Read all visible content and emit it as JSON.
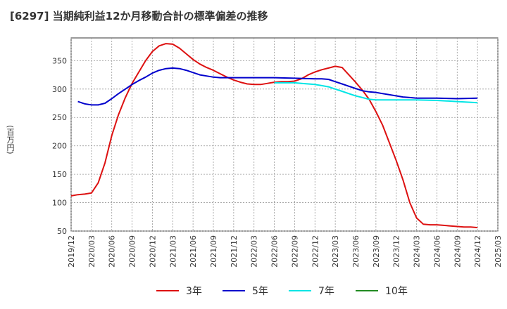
{
  "chart_data": {
    "type": "line",
    "title": "[6297]  当期純利益12か月移動合計の標準偏差の推移",
    "xlabel": "",
    "ylabel": "(百万円)",
    "ylim": [
      50,
      390
    ],
    "yticks": [
      50,
      100,
      150,
      200,
      250,
      300,
      350
    ],
    "xticks": [
      "2019/12",
      "2020/03",
      "2020/06",
      "2020/09",
      "2020/12",
      "2021/03",
      "2021/06",
      "2021/09",
      "2021/12",
      "2022/03",
      "2022/06",
      "2022/09",
      "2022/12",
      "2023/03",
      "2023/06",
      "2023/09",
      "2023/12",
      "2024/03",
      "2024/06",
      "2024/09",
      "2024/12",
      "2025/03"
    ],
    "grid": true,
    "legend_position": "bottom",
    "series": [
      {
        "name": "3年",
        "color": "#dd1111",
        "points": [
          [
            "2019/12",
            112
          ],
          [
            "2020/01",
            114
          ],
          [
            "2020/02",
            115
          ],
          [
            "2020/03",
            117
          ],
          [
            "2020/04",
            135
          ],
          [
            "2020/05",
            170
          ],
          [
            "2020/06",
            218
          ],
          [
            "2020/07",
            255
          ],
          [
            "2020/08",
            285
          ],
          [
            "2020/09",
            310
          ],
          [
            "2020/10",
            330
          ],
          [
            "2020/11",
            350
          ],
          [
            "2020/12",
            366
          ],
          [
            "2021/01",
            376
          ],
          [
            "2021/02",
            380
          ],
          [
            "2021/03",
            379
          ],
          [
            "2021/04",
            372
          ],
          [
            "2021/05",
            362
          ],
          [
            "2021/06",
            352
          ],
          [
            "2021/07",
            344
          ],
          [
            "2021/08",
            338
          ],
          [
            "2021/09",
            333
          ],
          [
            "2021/10",
            327
          ],
          [
            "2021/11",
            321
          ],
          [
            "2021/12",
            316
          ],
          [
            "2022/01",
            312
          ],
          [
            "2022/02",
            309
          ],
          [
            "2022/03",
            308
          ],
          [
            "2022/04",
            308
          ],
          [
            "2022/05",
            310
          ],
          [
            "2022/06",
            312
          ],
          [
            "2022/07",
            313
          ],
          [
            "2022/08",
            313
          ],
          [
            "2022/09",
            314
          ],
          [
            "2022/10",
            318
          ],
          [
            "2022/11",
            325
          ],
          [
            "2022/12",
            330
          ],
          [
            "2023/01",
            334
          ],
          [
            "2023/02",
            337
          ],
          [
            "2023/03",
            340
          ],
          [
            "2023/04",
            338
          ],
          [
            "2023/05",
            325
          ],
          [
            "2023/06",
            312
          ],
          [
            "2023/07",
            298
          ],
          [
            "2023/08",
            282
          ],
          [
            "2023/09",
            260
          ],
          [
            "2023/10",
            236
          ],
          [
            "2023/11",
            205
          ],
          [
            "2023/12",
            174
          ],
          [
            "2024/01",
            140
          ],
          [
            "2024/02",
            100
          ],
          [
            "2024/03",
            73
          ],
          [
            "2024/04",
            62
          ],
          [
            "2024/05",
            61
          ],
          [
            "2024/06",
            61
          ],
          [
            "2024/07",
            60
          ],
          [
            "2024/08",
            59
          ],
          [
            "2024/09",
            58
          ],
          [
            "2024/10",
            57
          ],
          [
            "2024/11",
            57
          ],
          [
            "2024/12",
            56
          ]
        ]
      },
      {
        "name": "5年",
        "color": "#0000cc",
        "points": [
          [
            "2020/01",
            278
          ],
          [
            "2020/02",
            274
          ],
          [
            "2020/03",
            272
          ],
          [
            "2020/04",
            272
          ],
          [
            "2020/05",
            275
          ],
          [
            "2020/06",
            283
          ],
          [
            "2020/07",
            292
          ],
          [
            "2020/08",
            300
          ],
          [
            "2020/09",
            308
          ],
          [
            "2020/10",
            315
          ],
          [
            "2020/11",
            321
          ],
          [
            "2020/12",
            328
          ],
          [
            "2021/01",
            333
          ],
          [
            "2021/02",
            336
          ],
          [
            "2021/03",
            337
          ],
          [
            "2021/04",
            336
          ],
          [
            "2021/05",
            333
          ],
          [
            "2021/06",
            329
          ],
          [
            "2021/07",
            325
          ],
          [
            "2021/08",
            323
          ],
          [
            "2021/09",
            321
          ],
          [
            "2021/10",
            320
          ],
          [
            "2021/11",
            320
          ],
          [
            "2021/12",
            320
          ],
          [
            "2022/03",
            320
          ],
          [
            "2022/06",
            320
          ],
          [
            "2022/09",
            319
          ],
          [
            "2022/12",
            318
          ],
          [
            "2023/01",
            318
          ],
          [
            "2023/02",
            317
          ],
          [
            "2023/03",
            313
          ],
          [
            "2023/04",
            309
          ],
          [
            "2023/05",
            305
          ],
          [
            "2023/06",
            301
          ],
          [
            "2023/07",
            297
          ],
          [
            "2023/08",
            295
          ],
          [
            "2023/09",
            294
          ],
          [
            "2023/10",
            292
          ],
          [
            "2023/11",
            290
          ],
          [
            "2023/12",
            288
          ],
          [
            "2024/01",
            286
          ],
          [
            "2024/02",
            285
          ],
          [
            "2024/03",
            284
          ],
          [
            "2024/06",
            284
          ],
          [
            "2024/09",
            283
          ],
          [
            "2024/12",
            284
          ]
        ]
      },
      {
        "name": "7年",
        "color": "#00e5e5",
        "points": [
          [
            "2022/06",
            311
          ],
          [
            "2022/07",
            311
          ],
          [
            "2022/08",
            311
          ],
          [
            "2022/09",
            311
          ],
          [
            "2022/10",
            310
          ],
          [
            "2022/11",
            309
          ],
          [
            "2022/12",
            308
          ],
          [
            "2023/01",
            306
          ],
          [
            "2023/02",
            304
          ],
          [
            "2023/03",
            300
          ],
          [
            "2023/04",
            296
          ],
          [
            "2023/05",
            292
          ],
          [
            "2023/06",
            288
          ],
          [
            "2023/07",
            285
          ],
          [
            "2023/08",
            282
          ],
          [
            "2023/09",
            281
          ],
          [
            "2023/12",
            281
          ],
          [
            "2024/03",
            281
          ],
          [
            "2024/06",
            280
          ],
          [
            "2024/09",
            278
          ],
          [
            "2024/12",
            276
          ]
        ]
      },
      {
        "name": "10年",
        "color": "#228b22",
        "points": []
      }
    ]
  }
}
